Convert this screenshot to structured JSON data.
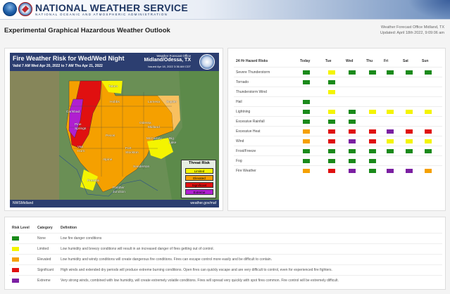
{
  "header": {
    "org_name": "NATIONAL WEATHER SERVICE",
    "org_sub": "NATIONAL OCEANIC AND ATMOSPHERIC ADMINISTRATION"
  },
  "page": {
    "title": "Experimental Graphical Hazardous Weather Outlook",
    "office": "Weather Forecast Office Midland, TX",
    "updated": "Updated: April 18th 2022, 9:09:06 am"
  },
  "map": {
    "title": "Fire Weather Risk for Wed/Wed Night",
    "valid": "Valid 7 AM Wed Apr 20, 2022 to 7 AM Thu Apr 21, 2022",
    "wfo_small": "Weather Forecast Office",
    "wfo": "Midland/Odessa, TX",
    "issued": "Issued Apr 18, 2022 3:36 AM CDT",
    "footer_left": "NWSMidland",
    "footer_right": "weather.gov/maf",
    "cities": {
      "tatum": "Tatum",
      "hobbs": "Hobbs",
      "lamesa": "Lamesa",
      "snyder": "Snyder",
      "carlsbad": "Carlsbad",
      "pine_springs": "Pine\nSprings",
      "pecos": "Pecos",
      "midland": "Midland",
      "odessa": "Odessa",
      "big_lake": "Big\nLake",
      "mccamey": "McCamey",
      "van_horn": "Van\nHorn",
      "fort_stockton": "Fort\nStockton",
      "alpine": "Alpine",
      "sanderson": "Sanderson",
      "presidio": "Presidio",
      "panther_junction": "Panther\nJunction"
    },
    "legend": {
      "title": "Threat Risk",
      "items": [
        "Limited",
        "Elevated",
        "Significant",
        "Extreme"
      ]
    }
  },
  "hazards": {
    "header_label": "24 Hr Hazard Risks",
    "days": [
      "Today",
      "Tue",
      "Wed",
      "Thu",
      "Fri",
      "Sat",
      "Sun"
    ],
    "rows": [
      {
        "name": "Severe Thunderstorm",
        "levels": [
          "none",
          "limited",
          "none",
          "none",
          "none",
          "none",
          "none"
        ]
      },
      {
        "name": "Tornado",
        "levels": [
          "none",
          "none",
          "",
          "",
          "",
          "",
          ""
        ]
      },
      {
        "name": "Thunderstorm Wind",
        "levels": [
          "",
          "limited",
          "",
          "",
          "",
          "",
          ""
        ]
      },
      {
        "name": "Hail",
        "levels": [
          "none",
          "",
          "",
          "",
          "",
          "",
          ""
        ]
      },
      {
        "name": "Lightning",
        "levels": [
          "none",
          "limited",
          "none",
          "limited",
          "limited",
          "limited",
          "limited"
        ]
      },
      {
        "name": "Excessive Rainfall",
        "levels": [
          "none",
          "none",
          "none",
          "",
          "",
          "",
          ""
        ]
      },
      {
        "name": "Excessive Heat",
        "levels": [
          "elevated",
          "significant",
          "significant",
          "significant",
          "extreme",
          "significant",
          "significant"
        ]
      },
      {
        "name": "Wind",
        "levels": [
          "elevated",
          "significant",
          "extreme",
          "significant",
          "limited",
          "limited",
          "limited"
        ]
      },
      {
        "name": "Frost/Freeze",
        "levels": [
          "none",
          "none",
          "none",
          "none",
          "none",
          "none",
          "none"
        ]
      },
      {
        "name": "Fog",
        "levels": [
          "none",
          "none",
          "none",
          "none",
          "",
          "",
          ""
        ]
      },
      {
        "name": "Fire Weather",
        "levels": [
          "elevated",
          "significant",
          "extreme",
          "none",
          "extreme",
          "extreme",
          "elevated"
        ]
      }
    ]
  },
  "risk_levels": {
    "headers": {
      "level": "Risk Level",
      "category": "Category",
      "definition": "Definition"
    },
    "rows": [
      {
        "level": "none",
        "category": "None",
        "definition": "Low fire danger conditions"
      },
      {
        "level": "limited",
        "category": "Limited",
        "definition": "Low humidity and breezy conditions will result in an increased danger of fires getting out of control."
      },
      {
        "level": "elevated",
        "category": "Elevated",
        "definition": "Low humidity and windy conditions will create dangerous fire conditions. Fires can escape control more easily and be difficult to contain."
      },
      {
        "level": "significant",
        "category": "Significant",
        "definition": "High winds and extended dry periods will produce extreme burning conditions. Open fires can quickly escape and are very difficult to control, even for experienced fire fighters."
      },
      {
        "level": "extreme",
        "category": "Extreme",
        "definition": "Very strong winds, combined with low humidity, will create extremely volatile conditions. Fires will spread very quickly with spot fires common. Fire control will be extremely difficult."
      }
    ]
  },
  "colors": {
    "none": "#1a8a1a",
    "limited": "#f4f400",
    "elevated": "#f5a000",
    "significant": "#e01010",
    "extreme": "#7b1fa2"
  }
}
